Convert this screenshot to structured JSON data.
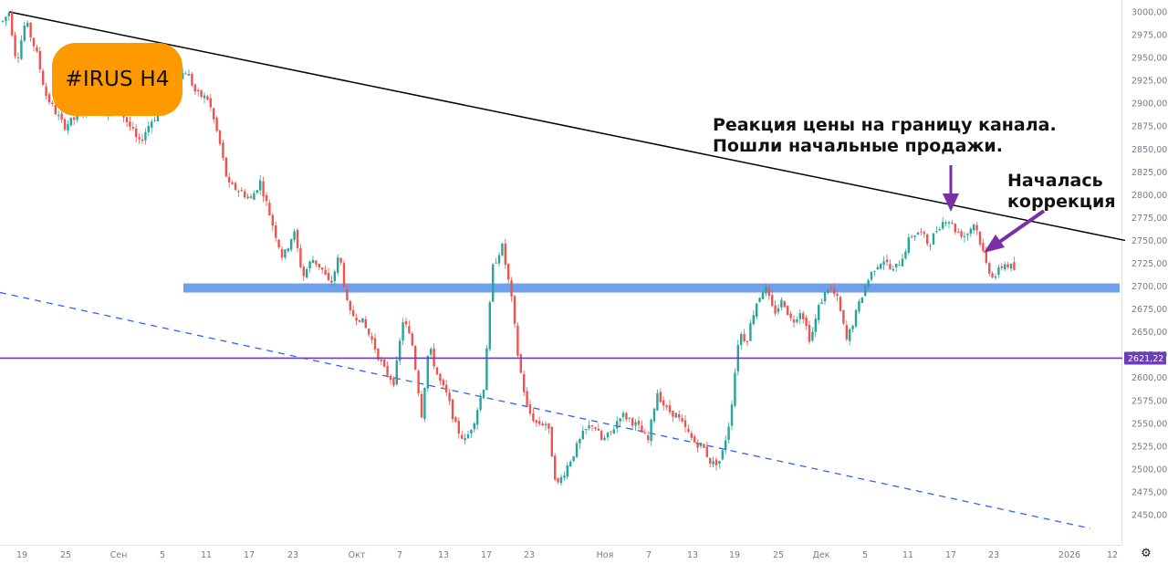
{
  "title": "#IRUS H4",
  "chart_data": {
    "type": "candlestick",
    "symbol": "IRUS",
    "timeframe": "H4",
    "ylim": [
      2440,
      3000
    ],
    "y_ticks": [
      "3000,00",
      "2975,00",
      "2950,00",
      "2925,00",
      "2900,00",
      "2875,00",
      "2850,00",
      "2825,00",
      "2800,00",
      "2775,00",
      "2750,00",
      "2725,00",
      "2700,00",
      "2675,00",
      "2650,00",
      "2625,00",
      "2600,00",
      "2575,00",
      "2550,00",
      "2525,00",
      "2500,00",
      "2475,00",
      "2450,00"
    ],
    "x_ticks": [
      "19",
      "25",
      "Сен",
      "5",
      "11",
      "17",
      "23",
      "Окт",
      "7",
      "13",
      "17",
      "23",
      "Ноя",
      "7",
      "13",
      "19",
      "25",
      "Дек",
      "5",
      "11",
      "17",
      "23",
      "2026",
      "12"
    ],
    "current_price": "2621,22",
    "support_zone": 2698,
    "horizontal_line": 2621.22,
    "price_path": [
      [
        0,
        2985
      ],
      [
        10,
        3000
      ],
      [
        18,
        2945
      ],
      [
        28,
        2990
      ],
      [
        40,
        2955
      ],
      [
        50,
        2910
      ],
      [
        58,
        2895
      ],
      [
        70,
        2875
      ],
      [
        85,
        2885
      ],
      [
        100,
        2900
      ],
      [
        115,
        2890
      ],
      [
        130,
        2895
      ],
      [
        145,
        2870
      ],
      [
        152,
        2855
      ],
      [
        165,
        2880
      ],
      [
        180,
        2895
      ],
      [
        195,
        2930
      ],
      [
        205,
        2935
      ],
      [
        215,
        2910
      ],
      [
        228,
        2905
      ],
      [
        240,
        2860
      ],
      [
        250,
        2810
      ],
      [
        262,
        2805
      ],
      [
        275,
        2795
      ],
      [
        285,
        2815
      ],
      [
        298,
        2770
      ],
      [
        310,
        2730
      ],
      [
        322,
        2760
      ],
      [
        332,
        2710
      ],
      [
        342,
        2730
      ],
      [
        352,
        2720
      ],
      [
        362,
        2700
      ],
      [
        372,
        2735
      ],
      [
        382,
        2670
      ],
      [
        395,
        2665
      ],
      [
        408,
        2640
      ],
      [
        420,
        2610
      ],
      [
        432,
        2595
      ],
      [
        442,
        2665
      ],
      [
        452,
        2635
      ],
      [
        462,
        2560
      ],
      [
        470,
        2635
      ],
      [
        480,
        2600
      ],
      [
        490,
        2580
      ],
      [
        500,
        2545
      ],
      [
        510,
        2530
      ],
      [
        520,
        2555
      ],
      [
        530,
        2590
      ],
      [
        540,
        2720
      ],
      [
        550,
        2745
      ],
      [
        560,
        2690
      ],
      [
        568,
        2620
      ],
      [
        578,
        2565
      ],
      [
        588,
        2550
      ],
      [
        600,
        2550
      ],
      [
        610,
        2480
      ],
      [
        620,
        2500
      ],
      [
        630,
        2520
      ],
      [
        640,
        2540
      ],
      [
        650,
        2550
      ],
      [
        660,
        2530
      ],
      [
        670,
        2540
      ],
      [
        680,
        2560
      ],
      [
        690,
        2555
      ],
      [
        700,
        2545
      ],
      [
        710,
        2530
      ],
      [
        720,
        2585
      ],
      [
        730,
        2565
      ],
      [
        740,
        2560
      ],
      [
        750,
        2545
      ],
      [
        760,
        2530
      ],
      [
        770,
        2525
      ],
      [
        780,
        2505
      ],
      [
        790,
        2510
      ],
      [
        800,
        2555
      ],
      [
        810,
        2650
      ],
      [
        818,
        2640
      ],
      [
        828,
        2680
      ],
      [
        838,
        2700
      ],
      [
        848,
        2670
      ],
      [
        858,
        2685
      ],
      [
        868,
        2660
      ],
      [
        878,
        2675
      ],
      [
        888,
        2640
      ],
      [
        898,
        2680
      ],
      [
        908,
        2700
      ],
      [
        918,
        2685
      ],
      [
        928,
        2640
      ],
      [
        938,
        2670
      ],
      [
        948,
        2700
      ],
      [
        958,
        2720
      ],
      [
        968,
        2730
      ],
      [
        978,
        2715
      ],
      [
        988,
        2730
      ],
      [
        998,
        2755
      ],
      [
        1008,
        2760
      ],
      [
        1018,
        2745
      ],
      [
        1028,
        2765
      ],
      [
        1038,
        2775
      ],
      [
        1048,
        2760
      ],
      [
        1058,
        2755
      ],
      [
        1068,
        2770
      ],
      [
        1075,
        2745
      ],
      [
        1082,
        2720
      ],
      [
        1090,
        2710
      ],
      [
        1100,
        2725
      ],
      [
        1110,
        2720
      ],
      [
        1114,
        2715
      ]
    ],
    "trendlines": [
      {
        "style": "solid-black",
        "from": [
          10,
          3000
        ],
        "to": [
          1233,
          2750
        ]
      },
      {
        "style": "dashed-blue",
        "from": [
          0,
          2693
        ],
        "to": [
          1195,
          2435
        ]
      }
    ],
    "annotations": [
      {
        "text_lines": [
          "Реакция цены на границу канала.",
          "Пошли начальные продажи."
        ]
      },
      {
        "text_lines": [
          "Началась",
          "коррекция"
        ]
      }
    ],
    "colors": {
      "up": "#26a69a",
      "down": "#ef5350",
      "trendline": "#000000",
      "channel_bottom": "#2962ff",
      "support_zone": "#6fa0ec",
      "price_line": "#6a3fb5",
      "arrows": "#7b2fa6",
      "badge": "#ff9900"
    },
    "grid": false,
    "legend": "none"
  },
  "icons": {
    "settings": "gear-icon"
  }
}
